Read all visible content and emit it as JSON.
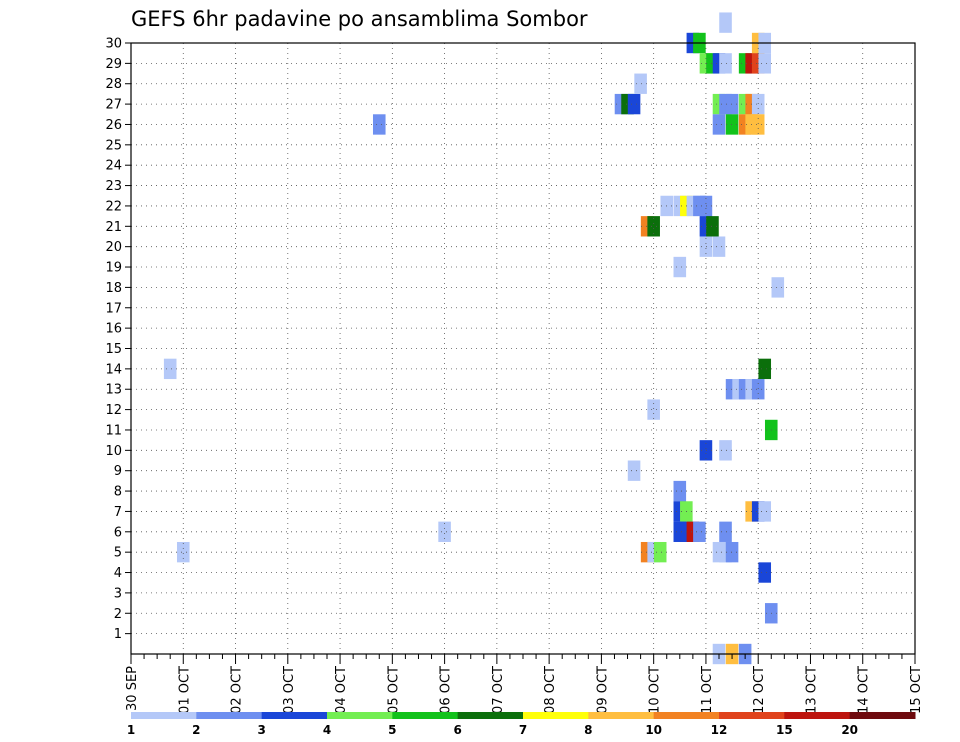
{
  "chart_data": {
    "type": "heatmap",
    "title": "GEFS 6hr padavine po ansamblima Sombor",
    "xlabel": "",
    "ylabel": "",
    "x_tick_labels": [
      "30 SEP",
      "01 OCT",
      "02 OCT",
      "03 OCT",
      "04 OCT",
      "05 OCT",
      "06 OCT",
      "07 OCT",
      "08 OCT",
      "09 OCT",
      "10 OCT",
      "11 OCT",
      "12 OCT",
      "13 OCT",
      "14 OCT",
      "15 OCT"
    ],
    "y_tick_labels": [
      "1",
      "2",
      "3",
      "4",
      "5",
      "6",
      "7",
      "8",
      "9",
      "10",
      "11",
      "12",
      "13",
      "14",
      "15",
      "16",
      "17",
      "18",
      "19",
      "20",
      "21",
      "22",
      "23",
      "24",
      "25",
      "26",
      "27",
      "28",
      "29",
      "30"
    ],
    "x_range": [
      "30 SEP 00Z",
      "15 OCT 00Z"
    ],
    "x_unit": "6-hour steps",
    "ylim": [
      0,
      30
    ],
    "grid": "dotted",
    "colorbar": {
      "labels": [
        "1",
        "2",
        "3",
        "4",
        "5",
        "6",
        "7",
        "8",
        "10",
        "12",
        "15",
        "20"
      ],
      "colors": [
        "#b4c8f8",
        "#6e8ff0",
        "#1a46d8",
        "#73ee52",
        "#12c21b",
        "#0b6f0b",
        "#ffff0a",
        "#ffbe40",
        "#f28222",
        "#e0431c",
        "#bd140e",
        "#6e0a0e"
      ]
    },
    "cells": [
      {
        "x": 1.5,
        "y": 14,
        "c": 0
      },
      {
        "x": 2.0,
        "y": 5,
        "c": 0
      },
      {
        "x": 9.5,
        "y": 26,
        "c": 1
      },
      {
        "x": 12.0,
        "y": 6,
        "c": 0
      },
      {
        "x": 18.75,
        "y": 27,
        "c": 1
      },
      {
        "x": 19.0,
        "y": 27,
        "c": 5
      },
      {
        "x": 19.25,
        "y": 27,
        "c": 2
      },
      {
        "x": 19.5,
        "y": 28,
        "c": 0
      },
      {
        "x": 19.25,
        "y": 9,
        "c": 0
      },
      {
        "x": 19.75,
        "y": 21,
        "c": 8
      },
      {
        "x": 20.0,
        "y": 21,
        "c": 5
      },
      {
        "x": 20.0,
        "y": 12,
        "c": 0
      },
      {
        "x": 19.75,
        "y": 5,
        "c": 8
      },
      {
        "x": 20.0,
        "y": 5,
        "c": 0
      },
      {
        "x": 20.25,
        "y": 5,
        "c": 3
      },
      {
        "x": 20.5,
        "y": 22,
        "c": 0
      },
      {
        "x": 21.0,
        "y": 22,
        "c": 0
      },
      {
        "x": 21.25,
        "y": 22,
        "c": 6
      },
      {
        "x": 21.5,
        "y": 22,
        "c": 0
      },
      {
        "x": 21.75,
        "y": 22,
        "c": 1
      },
      {
        "x": 22.0,
        "y": 22,
        "c": 1
      },
      {
        "x": 22.0,
        "y": 21,
        "c": 2
      },
      {
        "x": 22.25,
        "y": 21,
        "c": 5
      },
      {
        "x": 22.0,
        "y": 20,
        "c": 0
      },
      {
        "x": 22.5,
        "y": 20,
        "c": 0
      },
      {
        "x": 21.0,
        "y": 19,
        "c": 0
      },
      {
        "x": 21.0,
        "y": 8,
        "c": 1
      },
      {
        "x": 21.0,
        "y": 7,
        "c": 2
      },
      {
        "x": 21.25,
        "y": 7,
        "c": 3
      },
      {
        "x": 21.0,
        "y": 6,
        "c": 2
      },
      {
        "x": 21.25,
        "y": 6,
        "c": 2
      },
      {
        "x": 21.5,
        "y": 6,
        "c": 10
      },
      {
        "x": 21.75,
        "y": 6,
        "c": 1
      },
      {
        "x": 21.5,
        "y": 30,
        "c": 2
      },
      {
        "x": 21.75,
        "y": 30,
        "c": 4
      },
      {
        "x": 22.0,
        "y": 29,
        "c": 3
      },
      {
        "x": 22.25,
        "y": 29,
        "c": 4
      },
      {
        "x": 22.5,
        "y": 29,
        "c": 2
      },
      {
        "x": 22.75,
        "y": 29,
        "c": 0
      },
      {
        "x": 22.75,
        "y": 31,
        "c": 0
      },
      {
        "x": 22.0,
        "y": 10,
        "c": 2
      },
      {
        "x": 22.5,
        "y": 27,
        "c": 3
      },
      {
        "x": 22.75,
        "y": 27,
        "c": 1
      },
      {
        "x": 23.0,
        "y": 27,
        "c": 1
      },
      {
        "x": 22.5,
        "y": 26,
        "c": 1
      },
      {
        "x": 23.0,
        "y": 26,
        "c": 4
      },
      {
        "x": 22.75,
        "y": 10,
        "c": 0
      },
      {
        "x": 23.0,
        "y": 13,
        "c": 1
      },
      {
        "x": 23.25,
        "y": 13,
        "c": 0
      },
      {
        "x": 23.5,
        "y": 13,
        "c": 1
      },
      {
        "x": 23.75,
        "y": 13,
        "c": 0
      },
      {
        "x": 24.0,
        "y": 13,
        "c": 1
      },
      {
        "x": 22.75,
        "y": 6,
        "c": 1
      },
      {
        "x": 22.5,
        "y": 5,
        "c": 0
      },
      {
        "x": 22.75,
        "y": 5,
        "c": 0
      },
      {
        "x": 23.0,
        "y": 5,
        "c": 1
      },
      {
        "x": 23.5,
        "y": 29,
        "c": 4
      },
      {
        "x": 23.75,
        "y": 29,
        "c": 10
      },
      {
        "x": 24.0,
        "y": 29,
        "c": 9
      },
      {
        "x": 24.25,
        "y": 29,
        "c": 0
      },
      {
        "x": 24.0,
        "y": 30,
        "c": 7
      },
      {
        "x": 24.25,
        "y": 30,
        "c": 0
      },
      {
        "x": 23.5,
        "y": 27,
        "c": 3
      },
      {
        "x": 23.75,
        "y": 27,
        "c": 8
      },
      {
        "x": 24.0,
        "y": 27,
        "c": 0
      },
      {
        "x": 23.5,
        "y": 26,
        "c": 8
      },
      {
        "x": 23.75,
        "y": 26,
        "c": 7
      },
      {
        "x": 24.0,
        "y": 26,
        "c": 7
      },
      {
        "x": 24.25,
        "y": 14,
        "c": 5
      },
      {
        "x": 24.5,
        "y": 11,
        "c": 4
      },
      {
        "x": 23.75,
        "y": 7,
        "c": 7
      },
      {
        "x": 24.0,
        "y": 7,
        "c": 2
      },
      {
        "x": 24.25,
        "y": 7,
        "c": 0
      },
      {
        "x": 24.25,
        "y": 4,
        "c": 2
      },
      {
        "x": 24.5,
        "y": 2,
        "c": 1
      },
      {
        "x": 24.75,
        "y": 18,
        "c": 0
      },
      {
        "x": 22.5,
        "y": 0,
        "c": 0
      },
      {
        "x": 23.0,
        "y": 0,
        "c": 7
      },
      {
        "x": 23.5,
        "y": 0,
        "c": 1
      }
    ]
  }
}
